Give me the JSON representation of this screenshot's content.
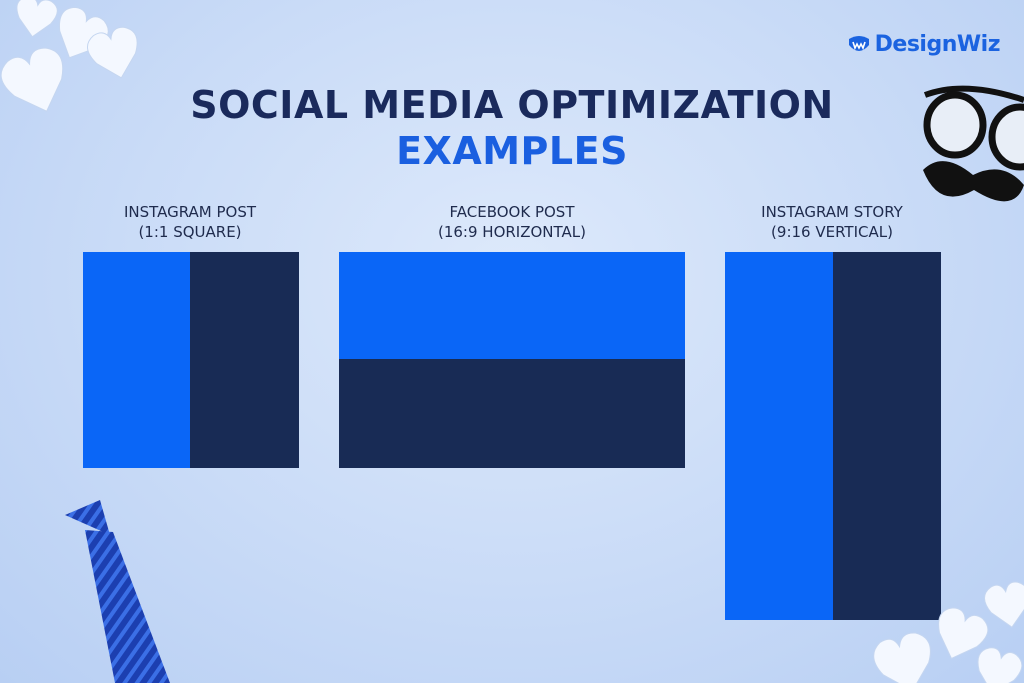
{
  "brand": {
    "name": "DesignWiz",
    "icon": "designwiz-logo-icon"
  },
  "title": {
    "line1": "SOCIAL MEDIA OPTIMIZATION",
    "line2": "EXAMPLES"
  },
  "examples": [
    {
      "name": "INSTAGRAM POST",
      "ratio": "(1:1 SQUARE)",
      "split": "vertical"
    },
    {
      "name": "FACEBOOK POST",
      "ratio": "(16:9 HORIZONTAL)",
      "split": "horizontal"
    },
    {
      "name": "INSTAGRAM STORY",
      "ratio": "(9:16 VERTICAL)",
      "split": "vertical"
    }
  ],
  "colors": {
    "bright_blue": "#0a66f7",
    "dark_navy": "#182b55",
    "title_dark": "#1a2a5c",
    "title_blue": "#1a5fe0"
  },
  "decorations": [
    "paper-hearts-top-left",
    "glasses-mustache",
    "necktie",
    "paper-hearts-bottom-right"
  ]
}
